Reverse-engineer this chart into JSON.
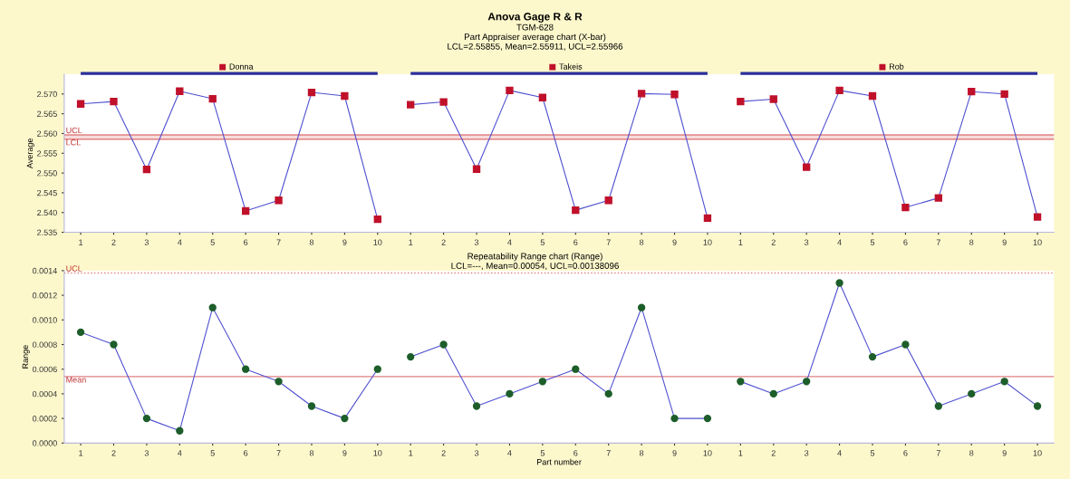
{
  "chart_data": [
    {
      "type": "line",
      "title": "Part Appraiser average chart (X-bar)",
      "subtitle": "LCL=2.55855, Mean=2.55911, UCL=2.55966",
      "ylabel": "Average",
      "annotations": [
        "Anova Gage R & R",
        "TGM-628"
      ],
      "categories": [
        "1",
        "2",
        "3",
        "4",
        "5",
        "6",
        "7",
        "8",
        "9",
        "10",
        "1",
        "2",
        "3",
        "4",
        "5",
        "6",
        "7",
        "8",
        "9",
        "10",
        "1",
        "2",
        "3",
        "4",
        "5",
        "6",
        "7",
        "8",
        "9",
        "10"
      ],
      "series": [
        {
          "name": "Donna",
          "color": "#c0102a",
          "values": [
            2.5675,
            2.5681,
            2.5509,
            2.5707,
            2.5688,
            2.5404,
            2.5431,
            2.5704,
            2.5695,
            2.5383,
            null,
            null,
            null,
            null,
            null,
            null,
            null,
            null,
            null,
            null,
            null,
            null,
            null,
            null,
            null,
            null,
            null,
            null,
            null,
            null
          ]
        },
        {
          "name": "Takeis",
          "color": "#c0102a",
          "values": [
            null,
            null,
            null,
            null,
            null,
            null,
            null,
            null,
            null,
            null,
            2.5673,
            2.568,
            2.551,
            2.5709,
            2.5691,
            2.5406,
            2.5431,
            2.5701,
            2.5699,
            2.5386,
            null,
            null,
            null,
            null,
            null,
            null,
            null,
            null,
            null,
            null
          ]
        },
        {
          "name": "Rob",
          "color": "#c0102a",
          "values": [
            null,
            null,
            null,
            null,
            null,
            null,
            null,
            null,
            null,
            null,
            null,
            null,
            null,
            null,
            null,
            null,
            null,
            null,
            null,
            null,
            2.5681,
            2.5687,
            2.5515,
            2.5709,
            2.5695,
            2.5413,
            2.5437,
            2.5706,
            2.57,
            2.5389
          ]
        }
      ],
      "ylim": [
        2.535,
        2.575
      ],
      "yticks": [
        {
          "value": 2.535,
          "label": "2.535"
        },
        {
          "value": 2.54,
          "label": "2.540"
        },
        {
          "value": 2.545,
          "label": "2.545"
        },
        {
          "value": 2.55,
          "label": "2.550"
        },
        {
          "value": 2.555,
          "label": "2.555"
        },
        {
          "value": 2.56,
          "label": "2.560"
        },
        {
          "value": 2.565,
          "label": "2.565"
        },
        {
          "value": 2.57,
          "label": "2.570"
        }
      ],
      "ref_lines": [
        {
          "axis": "y",
          "value": 2.55966,
          "label": "UCL",
          "color": "#e08080"
        },
        {
          "axis": "y",
          "value": 2.55855,
          "label": "LCL",
          "color": "#e08080"
        }
      ],
      "bands": [
        {
          "axis": "y",
          "from": 2.55855,
          "to": 2.55966,
          "color": "#f2c4c4"
        }
      ],
      "marker": "square",
      "line_style": "solid",
      "grid": false,
      "legend": "top"
    },
    {
      "type": "line",
      "title": "Repeatability Range chart (Range)",
      "subtitle": "LCL=---, Mean=0.00054, UCL=0.00138096",
      "ylabel": "Range",
      "xlabel": "Part number",
      "categories": [
        "1",
        "2",
        "3",
        "4",
        "5",
        "6",
        "7",
        "8",
        "9",
        "10",
        "1",
        "2",
        "3",
        "4",
        "5",
        "6",
        "7",
        "8",
        "9",
        "10",
        "1",
        "2",
        "3",
        "4",
        "5",
        "6",
        "7",
        "8",
        "9",
        "10"
      ],
      "series": [
        {
          "color": "#1d5e2a",
          "values": [
            0.0009,
            0.0008,
            0.0002,
            0.0001,
            0.0011,
            0.0006,
            0.0005,
            0.0003,
            0.0002,
            0.0006,
            null,
            null,
            null,
            null,
            null,
            null,
            null,
            null,
            null,
            null,
            null,
            null,
            null,
            null,
            null,
            null,
            null,
            null,
            null,
            null
          ]
        },
        {
          "color": "#1d5e2a",
          "values": [
            null,
            null,
            null,
            null,
            null,
            null,
            null,
            null,
            null,
            null,
            0.0007,
            0.0008,
            0.0003,
            0.0004,
            0.0005,
            0.0006,
            0.0004,
            0.0011,
            0.0002,
            0.0002,
            null,
            null,
            null,
            null,
            null,
            null,
            null,
            null,
            null,
            null
          ]
        },
        {
          "color": "#1d5e2a",
          "values": [
            null,
            null,
            null,
            null,
            null,
            null,
            null,
            null,
            null,
            null,
            null,
            null,
            null,
            null,
            null,
            null,
            null,
            null,
            null,
            null,
            0.0005,
            0.0004,
            0.0005,
            0.0013,
            0.0007,
            0.0008,
            0.0003,
            0.0004,
            0.0005,
            0.0003
          ]
        }
      ],
      "ylim": [
        0,
        0.0014
      ],
      "yticks": [
        {
          "value": 0,
          "label": "0.0000"
        },
        {
          "value": 0.0002,
          "label": "0.0002"
        },
        {
          "value": 0.0004,
          "label": "0.0004"
        },
        {
          "value": 0.0006,
          "label": "0.0006"
        },
        {
          "value": 0.0008,
          "label": "0.0008"
        },
        {
          "value": 0.001,
          "label": "0.0010"
        },
        {
          "value": 0.0012,
          "label": "0.0012"
        },
        {
          "value": 0.0014,
          "label": "0.0014"
        }
      ],
      "ref_lines": [
        {
          "axis": "y",
          "value": 0.00138096,
          "label": "UCL",
          "color": "#e08080",
          "line_style": "dotted"
        },
        {
          "axis": "y",
          "value": 0.00054,
          "label": "Mean",
          "color": "#e08080",
          "line_style": "solid"
        }
      ],
      "marker": "circle",
      "line_style": "solid",
      "grid": false,
      "legend": false
    }
  ]
}
